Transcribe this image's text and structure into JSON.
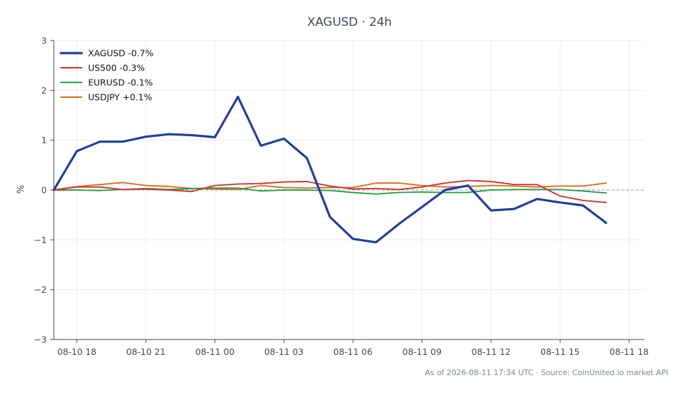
{
  "footer": "As of 2026-08-11 17:34 UTC · Source: CoinUnited.io market API",
  "chart_data": {
    "type": "line",
    "title": "XAGUSD · 24h",
    "xlabel": "",
    "ylabel": "%",
    "ylim": [
      -3,
      3
    ],
    "yticks": [
      -3,
      -2,
      -1,
      0,
      1,
      2,
      3
    ],
    "ytick_labels": [
      "−3",
      "−2",
      "−1",
      "0",
      "1",
      "2",
      "3"
    ],
    "xlim": [
      "2026-08-10 17:00",
      "2026-08-11 18:40"
    ],
    "xticks": [
      "2026-08-10 18:00",
      "2026-08-10 21:00",
      "2026-08-11 00:00",
      "2026-08-11 03:00",
      "2026-08-11 06:00",
      "2026-08-11 09:00",
      "2026-08-11 12:00",
      "2026-08-11 15:00",
      "2026-08-11 18:00"
    ],
    "xtick_labels": [
      "08-10 18",
      "08-10 21",
      "08-11 00",
      "08-11 03",
      "08-11 06",
      "08-11 09",
      "08-11 12",
      "08-11 15",
      "08-11 18"
    ],
    "grid": true,
    "zero_line": true,
    "legend_position": "top-left",
    "x": [
      "2026-08-10 17:00",
      "2026-08-10 18:00",
      "2026-08-10 19:00",
      "2026-08-10 20:00",
      "2026-08-10 21:00",
      "2026-08-10 22:00",
      "2026-08-10 23:00",
      "2026-08-11 00:00",
      "2026-08-11 01:00",
      "2026-08-11 02:00",
      "2026-08-11 03:00",
      "2026-08-11 04:00",
      "2026-08-11 05:00",
      "2026-08-11 06:00",
      "2026-08-11 07:00",
      "2026-08-11 08:00",
      "2026-08-11 09:00",
      "2026-08-11 10:00",
      "2026-08-11 11:00",
      "2026-08-11 12:00",
      "2026-08-11 13:00",
      "2026-08-11 14:00",
      "2026-08-11 15:00",
      "2026-08-11 16:00",
      "2026-08-11 17:00"
    ],
    "series": [
      {
        "name": "XAGUSD -0.7%",
        "color": "#1f3f9c",
        "values": [
          0.0,
          0.78,
          0.97,
          0.97,
          1.07,
          1.12,
          1.1,
          1.06,
          1.87,
          0.89,
          1.03,
          0.64,
          -0.54,
          -0.98,
          -1.05,
          -0.68,
          -0.34,
          0.0,
          0.09,
          -0.41,
          -0.38,
          -0.18,
          -0.25,
          -0.31,
          -0.66
        ]
      },
      {
        "name": "US500 -0.3%",
        "color": "#d03232",
        "values": [
          0.0,
          0.06,
          0.06,
          0.01,
          0.02,
          0.0,
          -0.03,
          0.09,
          0.12,
          0.13,
          0.16,
          0.17,
          0.08,
          0.02,
          0.03,
          0.01,
          0.06,
          0.14,
          0.19,
          0.17,
          0.11,
          0.11,
          -0.12,
          -0.21,
          -0.25
        ]
      },
      {
        "name": "EURUSD -0.1%",
        "color": "#23a046",
        "values": [
          0.0,
          0.0,
          -0.01,
          0.01,
          0.03,
          0.01,
          0.03,
          0.04,
          0.04,
          -0.02,
          0.0,
          0.0,
          -0.01,
          -0.05,
          -0.08,
          -0.05,
          -0.04,
          -0.05,
          -0.05,
          0.0,
          0.01,
          0.01,
          0.01,
          -0.02,
          -0.06
        ]
      },
      {
        "name": "USDJPY +0.1%",
        "color": "#e06c1e",
        "values": [
          0.0,
          0.07,
          0.11,
          0.15,
          0.09,
          0.07,
          0.03,
          0.02,
          0.01,
          0.09,
          0.05,
          0.04,
          0.05,
          0.05,
          0.14,
          0.14,
          0.09,
          0.06,
          0.07,
          0.09,
          0.08,
          0.06,
          0.08,
          0.08,
          0.14
        ]
      }
    ]
  }
}
